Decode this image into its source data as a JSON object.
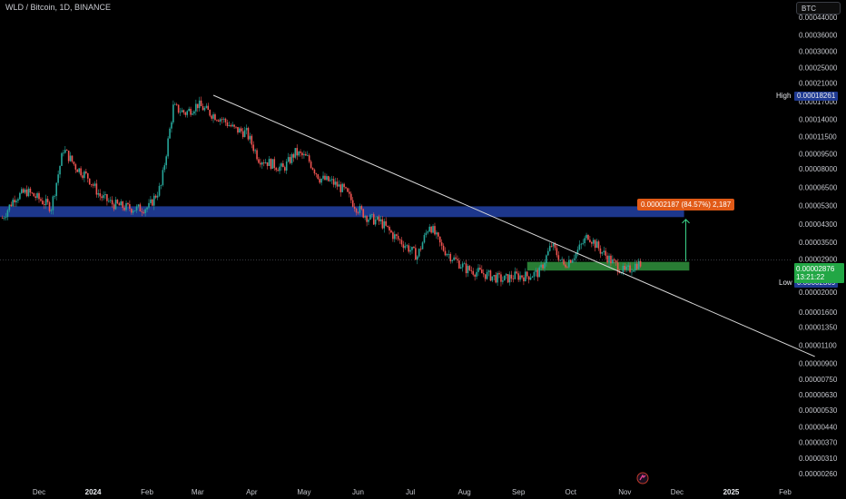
{
  "header": {
    "title": "WLD / Bitcoin, 1D, BINANCE",
    "currency": "BTC"
  },
  "colors": {
    "up": "#26a69a",
    "down": "#ef5350",
    "resistance_zone": "#1f3a93",
    "support_zone": "#2e8b3a",
    "trendline": "#d9d9d9",
    "target_arrow": "#3bd68a",
    "price_tag": "#22a745",
    "target_label": "#e15a17",
    "high_label": "#1f3a93",
    "low_label": "#1f3a93"
  },
  "markers": {
    "high_label": "High",
    "high_value": "0.00018261",
    "low_label": "Low",
    "low_value": "0.00002369",
    "last_price": "0.00002876",
    "countdown": "13:21:22",
    "target_text": "0.00002187 (84.57%) 2,187"
  },
  "chart_data": {
    "type": "candlestick",
    "title": "WLD / Bitcoin, 1D, BINANCE",
    "y_scale": "log",
    "y_ticks": [
      "0.00044000",
      "0.00036000",
      "0.00030000",
      "0.00025000",
      "0.00021000",
      "0.00017000",
      "0.00014000",
      "0.00011500",
      "0.00009500",
      "0.00008000",
      "0.00006500",
      "0.00005300",
      "0.00004300",
      "0.00003500",
      "0.00002900",
      "0.00002000",
      "0.00001600",
      "0.00001350",
      "0.00001100",
      "0.00000900",
      "0.00000750",
      "0.00000630",
      "0.00000530",
      "0.00000440",
      "0.00000370",
      "0.00000310",
      "0.00000260"
    ],
    "y_tick_values": [
      0.00044,
      0.00036,
      0.0003,
      0.00025,
      0.00021,
      0.00017,
      0.00014,
      0.000115,
      9.5e-05,
      8e-05,
      6.5e-05,
      5.3e-05,
      4.3e-05,
      3.5e-05,
      2.9e-05,
      2e-05,
      1.6e-05,
      1.35e-05,
      1.1e-05,
      9e-06,
      7.5e-06,
      6.3e-06,
      5.3e-06,
      4.4e-06,
      3.7e-06,
      3.1e-06,
      2.6e-06
    ],
    "x_ticks": [
      {
        "label": "Dec",
        "date": "2023-12-01",
        "bold": false
      },
      {
        "label": "2024",
        "date": "2024-01-01",
        "bold": true
      },
      {
        "label": "Feb",
        "date": "2024-02-01",
        "bold": false
      },
      {
        "label": "Mar",
        "date": "2024-03-01",
        "bold": false
      },
      {
        "label": "Apr",
        "date": "2024-04-01",
        "bold": false
      },
      {
        "label": "May",
        "date": "2024-05-01",
        "bold": false
      },
      {
        "label": "Jun",
        "date": "2024-06-01",
        "bold": false
      },
      {
        "label": "Jul",
        "date": "2024-07-01",
        "bold": false
      },
      {
        "label": "Aug",
        "date": "2024-08-01",
        "bold": false
      },
      {
        "label": "Sep",
        "date": "2024-09-01",
        "bold": false
      },
      {
        "label": "Oct",
        "date": "2024-10-01",
        "bold": false
      },
      {
        "label": "Nov",
        "date": "2024-11-01",
        "bold": false
      },
      {
        "label": "Dec",
        "date": "2024-12-01",
        "bold": false
      },
      {
        "label": "2025",
        "date": "2025-01-01",
        "bold": true
      },
      {
        "label": "Feb",
        "date": "2025-02-01",
        "bold": false
      }
    ],
    "x_range": [
      "2023-11-10",
      "2025-02-20"
    ],
    "y_range": [
      2.5e-06,
      0.00046
    ],
    "closes_weekly": {
      "start": "2023-11-10",
      "step_days": 7,
      "values": [
        4.6e-05,
        5.8e-05,
        6.2e-05,
        5.7e-05,
        5.2e-05,
        0.0001,
        8.2e-05,
        7.3e-05,
        5.9e-05,
        5.4e-05,
        5.2e-05,
        5.1e-05,
        5.2e-05,
        6.6e-05,
        0.00016,
        0.00015,
        0.000165,
        0.00015,
        0.00014,
        0.000125,
        0.00012,
        9e-05,
        8.5e-05,
        8e-05,
        9.6e-05,
        9e-05,
        7.2e-05,
        6.9e-05,
        6.3e-05,
        5.2e-05,
        4.6e-05,
        4.4e-05,
        3.8e-05,
        3.4e-05,
        3e-05,
        4.3e-05,
        3.3e-05,
        2.9e-05,
        2.6e-05,
        2.5e-05,
        2.4e-05,
        2.3e-05,
        2.4e-05,
        2.4e-05,
        2.5e-05,
        3.4e-05,
        2.7e-05,
        3.1e-05,
        3.8e-05,
        3.2e-05,
        2.8e-05,
        2.5e-05,
        2.75e-05
      ]
    },
    "zones": [
      {
        "name": "resistance",
        "low": 4.65e-05,
        "high": 5.25e-05,
        "from": "2023-11-10",
        "to": "2024-12-05"
      },
      {
        "name": "support",
        "low": 2.55e-05,
        "high": 2.81e-05,
        "from": "2024-09-06",
        "to": "2024-12-08"
      }
    ],
    "trendline": {
      "from": {
        "date": "2024-03-10",
        "value": 0.000183
      },
      "to": {
        "date": "2025-02-18",
        "value": 9.7e-06
      }
    },
    "target_arrow": {
      "date": "2024-12-06",
      "from": 2.83e-05,
      "to": 4.53e-05
    },
    "last_price": 2.876e-05,
    "high": 0.00018261,
    "low": 2.369e-05
  }
}
